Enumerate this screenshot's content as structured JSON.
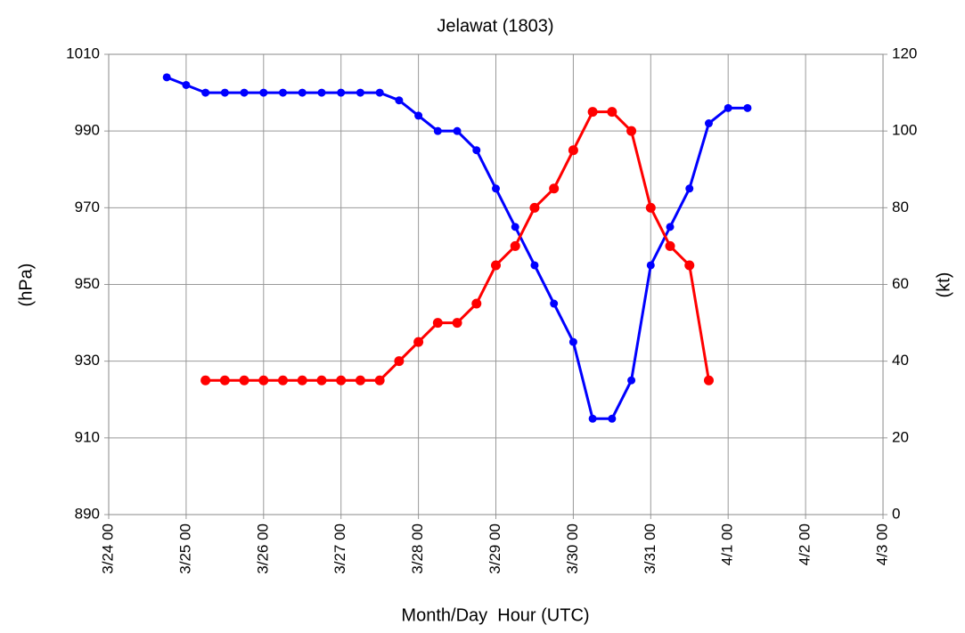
{
  "chart_data": {
    "type": "line",
    "title": "Jelawat (1803)",
    "xlabel": "Month/Day  Hour (UTC)",
    "ylabel": "(hPa)",
    "y2label": "(kt)",
    "x": [
      0.75,
      1.0,
      1.25,
      1.5,
      1.75,
      2.0,
      2.25,
      2.5,
      2.75,
      3.0,
      3.25,
      3.5,
      3.75,
      4.0,
      4.25,
      4.5,
      4.75,
      5.0,
      5.25,
      5.5,
      5.75,
      6.0,
      6.25,
      6.5,
      6.75,
      7.0,
      7.25,
      7.5,
      7.75,
      8.0,
      8.25
    ],
    "series": [
      {
        "color": "#0000ff",
        "values": [
          1004,
          1002,
          1000,
          1000,
          1000,
          1000,
          1000,
          1000,
          1000,
          1000,
          1000,
          1000,
          998,
          994,
          990,
          990,
          985,
          975,
          965,
          955,
          945,
          935,
          915,
          915,
          925,
          955,
          965,
          975,
          992,
          996,
          996
        ]
      },
      {
        "color": "#ff0000",
        "axis": "y2",
        "values": [
          null,
          null,
          35,
          35,
          35,
          35,
          35,
          35,
          35,
          35,
          35,
          35,
          40,
          45,
          50,
          50,
          55,
          65,
          70,
          80,
          85,
          95,
          105,
          105,
          100,
          80,
          70,
          65,
          35,
          null,
          null
        ]
      }
    ],
    "xlim": [
      0,
      10
    ],
    "xticks": [
      {
        "value": 0,
        "label": "3/24 00"
      },
      {
        "value": 1,
        "label": "3/25 00"
      },
      {
        "value": 2,
        "label": "3/26 00"
      },
      {
        "value": 3,
        "label": "3/27 00"
      },
      {
        "value": 4,
        "label": "3/28 00"
      },
      {
        "value": 5,
        "label": "3/29 00"
      },
      {
        "value": 6,
        "label": "3/30 00"
      },
      {
        "value": 7,
        "label": "3/31 00"
      },
      {
        "value": 8,
        "label": "4/1 00"
      },
      {
        "value": 9,
        "label": "4/2 00"
      },
      {
        "value": 10,
        "label": "4/3 00"
      }
    ],
    "ylim": [
      890,
      1010
    ],
    "yticks": [
      890,
      910,
      930,
      950,
      970,
      990,
      1010
    ],
    "y2lim": [
      0,
      120
    ],
    "y2ticks": [
      0,
      20,
      40,
      60,
      80,
      100,
      120
    ],
    "grid": true
  }
}
